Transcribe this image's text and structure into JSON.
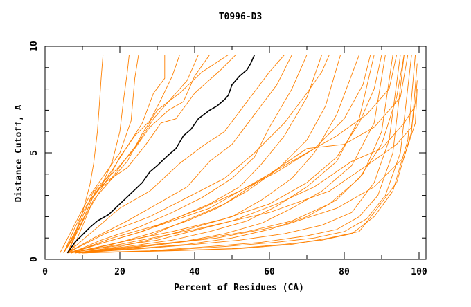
{
  "chart_data": {
    "type": "line",
    "title": "T0996-D3",
    "xlabel": "Percent of Residues (CA)",
    "ylabel": "Distance Cutoff, A",
    "xlim": [
      0,
      100
    ],
    "ylim": [
      0,
      10
    ],
    "xticks": [
      "0",
      "20",
      "40",
      "60",
      "80",
      "100"
    ],
    "yticks": [
      "0",
      "5",
      "10"
    ],
    "grid": false,
    "highlight_color": "#000000",
    "series_color": "#ff8000",
    "highlight": {
      "name": "highlight",
      "points": [
        [
          6,
          0.3
        ],
        [
          8,
          0.8
        ],
        [
          10,
          1.15
        ],
        [
          12,
          1.5
        ],
        [
          14,
          1.8
        ],
        [
          17,
          2.1
        ],
        [
          20,
          2.6
        ],
        [
          23,
          3.1
        ],
        [
          26,
          3.6
        ],
        [
          28,
          4.1
        ],
        [
          30,
          4.4
        ],
        [
          33,
          4.9
        ],
        [
          35,
          5.2
        ],
        [
          37,
          5.8
        ],
        [
          39,
          6.1
        ],
        [
          41,
          6.6
        ],
        [
          44,
          7.0
        ],
        [
          46,
          7.2
        ],
        [
          48,
          7.5
        ],
        [
          49,
          7.7
        ],
        [
          50,
          8.2
        ],
        [
          52,
          8.6
        ],
        [
          54,
          8.9
        ],
        [
          55,
          9.2
        ],
        [
          56,
          9.6
        ]
      ]
    },
    "series": [
      [
        [
          5,
          0.3
        ],
        [
          8,
          1.2
        ],
        [
          10,
          2.2
        ],
        [
          12,
          3.5
        ],
        [
          13,
          4.5
        ],
        [
          14,
          6
        ],
        [
          14.5,
          7.2
        ],
        [
          15,
          8.5
        ],
        [
          15.5,
          9.6
        ]
      ],
      [
        [
          5,
          0.3
        ],
        [
          8,
          1.5
        ],
        [
          11,
          2.5
        ],
        [
          15,
          3.4
        ],
        [
          18,
          4.6
        ],
        [
          20,
          6
        ],
        [
          21,
          7.5
        ],
        [
          22,
          8.8
        ],
        [
          22.5,
          9.6
        ]
      ],
      [
        [
          4,
          0.3
        ],
        [
          9,
          2
        ],
        [
          12,
          3
        ],
        [
          16,
          4
        ],
        [
          20,
          5
        ],
        [
          23,
          6.5
        ],
        [
          24,
          8.5
        ],
        [
          25,
          9.6
        ]
      ],
      [
        [
          6,
          0.3
        ],
        [
          10,
          1.8
        ],
        [
          13,
          3
        ],
        [
          18,
          4.2
        ],
        [
          22,
          5.3
        ],
        [
          26,
          6.4
        ],
        [
          29,
          7.8
        ],
        [
          32,
          8.5
        ],
        [
          32,
          9.6
        ]
      ],
      [
        [
          5,
          0.3
        ],
        [
          9,
          1.6
        ],
        [
          12,
          2.8
        ],
        [
          17,
          3.8
        ],
        [
          20,
          4.8
        ],
        [
          24,
          5.8
        ],
        [
          28,
          6.5
        ],
        [
          31,
          7.5
        ],
        [
          34,
          8.6
        ],
        [
          36,
          9.6
        ]
      ],
      [
        [
          6,
          0.3
        ],
        [
          10,
          2
        ],
        [
          13,
          3.2
        ],
        [
          17,
          3.6
        ],
        [
          21,
          4.6
        ],
        [
          25,
          5.5
        ],
        [
          29,
          6.6
        ],
        [
          33,
          7.4
        ],
        [
          38,
          8.4
        ],
        [
          41,
          9.6
        ]
      ],
      [
        [
          6,
          0.3
        ],
        [
          11,
          2.2
        ],
        [
          14,
          3.4
        ],
        [
          19,
          4.2
        ],
        [
          24,
          5.2
        ],
        [
          28,
          6.2
        ],
        [
          33,
          7
        ],
        [
          37,
          7.4
        ],
        [
          40,
          8.6
        ],
        [
          44,
          9.6
        ]
      ],
      [
        [
          5,
          0.3
        ],
        [
          9,
          1.4
        ],
        [
          13,
          2.8
        ],
        [
          18,
          3.8
        ],
        [
          22,
          4.6
        ],
        [
          26,
          5.9
        ],
        [
          30,
          7
        ],
        [
          36,
          7.8
        ],
        [
          42,
          8.8
        ],
        [
          49,
          9.6
        ]
      ],
      [
        [
          7,
          0.3
        ],
        [
          12,
          2.4
        ],
        [
          16,
          3.6
        ],
        [
          22,
          4.3
        ],
        [
          27,
          5.4
        ],
        [
          31,
          6.4
        ],
        [
          35,
          6.6
        ],
        [
          40,
          7.8
        ],
        [
          47,
          8.9
        ],
        [
          51,
          9.6
        ]
      ],
      [
        [
          6,
          0.3
        ],
        [
          12,
          1.2
        ],
        [
          20,
          2.4
        ],
        [
          28,
          3.2
        ],
        [
          36,
          4.5
        ],
        [
          42,
          5.3
        ],
        [
          48,
          6
        ],
        [
          54,
          7.4
        ],
        [
          60,
          8.8
        ],
        [
          64,
          9.6
        ]
      ],
      [
        [
          6,
          0.3
        ],
        [
          13,
          1
        ],
        [
          22,
          1.8
        ],
        [
          30,
          2.6
        ],
        [
          38,
          3.4
        ],
        [
          44,
          4.6
        ],
        [
          50,
          5.4
        ],
        [
          56,
          6.8
        ],
        [
          62,
          8.2
        ],
        [
          66,
          9.6
        ]
      ],
      [
        [
          7,
          0.3
        ],
        [
          15,
          0.9
        ],
        [
          25,
          1.5
        ],
        [
          34,
          2.2
        ],
        [
          42,
          2.9
        ],
        [
          50,
          3.8
        ],
        [
          56,
          4.8
        ],
        [
          60,
          6.2
        ],
        [
          66,
          8
        ],
        [
          70,
          9.6
        ]
      ],
      [
        [
          7,
          0.3
        ],
        [
          16,
          0.8
        ],
        [
          26,
          1.3
        ],
        [
          36,
          2
        ],
        [
          44,
          2.6
        ],
        [
          52,
          3.4
        ],
        [
          58,
          4.5
        ],
        [
          64,
          5.8
        ],
        [
          70,
          7.6
        ],
        [
          74,
          9.6
        ]
      ],
      [
        [
          7,
          0.3
        ],
        [
          18,
          0.7
        ],
        [
          28,
          1.2
        ],
        [
          38,
          1.8
        ],
        [
          46,
          2.4
        ],
        [
          54,
          3.2
        ],
        [
          62,
          4.2
        ],
        [
          70,
          5.6
        ],
        [
          75,
          7.2
        ],
        [
          79,
          9.6
        ]
      ],
      [
        [
          8,
          0.3
        ],
        [
          20,
          0.6
        ],
        [
          30,
          1
        ],
        [
          40,
          1.5
        ],
        [
          50,
          2
        ],
        [
          58,
          2.8
        ],
        [
          66,
          3.8
        ],
        [
          72,
          5
        ],
        [
          78,
          6.8
        ],
        [
          84,
          9.6
        ]
      ],
      [
        [
          8,
          0.3
        ],
        [
          22,
          0.6
        ],
        [
          34,
          0.9
        ],
        [
          44,
          1.3
        ],
        [
          54,
          1.8
        ],
        [
          62,
          2.5
        ],
        [
          70,
          3.4
        ],
        [
          78,
          4.6
        ],
        [
          84,
          6.6
        ],
        [
          88,
          9.6
        ]
      ],
      [
        [
          8,
          0.3
        ],
        [
          22,
          0.5
        ],
        [
          36,
          0.8
        ],
        [
          48,
          1.2
        ],
        [
          58,
          1.7
        ],
        [
          66,
          2.4
        ],
        [
          74,
          3.2
        ],
        [
          82,
          4.4
        ],
        [
          88,
          6.4
        ],
        [
          91,
          9.6
        ]
      ],
      [
        [
          9,
          0.3
        ],
        [
          24,
          0.5
        ],
        [
          38,
          0.7
        ],
        [
          50,
          1
        ],
        [
          60,
          1.4
        ],
        [
          70,
          2
        ],
        [
          78,
          2.8
        ],
        [
          85,
          4
        ],
        [
          90,
          6
        ],
        [
          93,
          9.6
        ]
      ],
      [
        [
          9,
          0.3
        ],
        [
          26,
          0.5
        ],
        [
          40,
          0.7
        ],
        [
          52,
          0.9
        ],
        [
          64,
          1.2
        ],
        [
          74,
          1.6
        ],
        [
          82,
          2.2
        ],
        [
          88,
          3.6
        ],
        [
          92,
          5.6
        ],
        [
          95,
          9.6
        ]
      ],
      [
        [
          9,
          0.3
        ],
        [
          28,
          0.4
        ],
        [
          44,
          0.6
        ],
        [
          58,
          0.8
        ],
        [
          70,
          1.1
        ],
        [
          78,
          1.4
        ],
        [
          84,
          2
        ],
        [
          89,
          3
        ],
        [
          93,
          5
        ],
        [
          96,
          9.6
        ]
      ],
      [
        [
          10,
          0.3
        ],
        [
          30,
          0.4
        ],
        [
          48,
          0.6
        ],
        [
          62,
          0.8
        ],
        [
          72,
          1
        ],
        [
          80,
          1.3
        ],
        [
          86,
          1.9
        ],
        [
          91,
          3
        ],
        [
          95,
          5
        ],
        [
          98,
          9.6
        ]
      ],
      [
        [
          10,
          0.3
        ],
        [
          32,
          0.4
        ],
        [
          50,
          0.5
        ],
        [
          64,
          0.7
        ],
        [
          74,
          0.9
        ],
        [
          82,
          1.2
        ],
        [
          88,
          2
        ],
        [
          93,
          3.2
        ],
        [
          97,
          5.6
        ],
        [
          99,
          9.6
        ]
      ],
      [
        [
          10,
          0.3
        ],
        [
          34,
          0.4
        ],
        [
          52,
          0.5
        ],
        [
          66,
          0.7
        ],
        [
          76,
          1
        ],
        [
          84,
          1.3
        ],
        [
          88,
          2.2
        ],
        [
          94,
          3.6
        ],
        [
          98,
          6
        ],
        [
          99.5,
          9.2
        ]
      ],
      [
        [
          8,
          0.3
        ],
        [
          24,
          0.6
        ],
        [
          40,
          0.9
        ],
        [
          54,
          1.3
        ],
        [
          66,
          1.8
        ],
        [
          76,
          2.6
        ],
        [
          84,
          3.8
        ],
        [
          90,
          5.4
        ],
        [
          94,
          7.6
        ],
        [
          96,
          9.6
        ]
      ],
      [
        [
          7,
          0.3
        ],
        [
          20,
          0.8
        ],
        [
          34,
          1.3
        ],
        [
          48,
          1.9
        ],
        [
          60,
          2.6
        ],
        [
          70,
          3.6
        ],
        [
          78,
          4.8
        ],
        [
          84,
          6.4
        ],
        [
          88,
          8
        ],
        [
          90,
          9.6
        ]
      ],
      [
        [
          7,
          0.3
        ],
        [
          18,
          1
        ],
        [
          30,
          1.6
        ],
        [
          42,
          2.4
        ],
        [
          52,
          3.2
        ],
        [
          62,
          4.1
        ],
        [
          72,
          5.2
        ],
        [
          80,
          6.6
        ],
        [
          85,
          8.2
        ],
        [
          87,
          9.6
        ]
      ],
      [
        [
          6,
          0.3
        ],
        [
          16,
          1.2
        ],
        [
          28,
          2
        ],
        [
          38,
          2.9
        ],
        [
          48,
          3.8
        ],
        [
          56,
          5
        ],
        [
          64,
          6.4
        ],
        [
          70,
          7.8
        ],
        [
          74,
          8.8
        ],
        [
          76,
          9.6
        ]
      ],
      [
        [
          7,
          0.3
        ],
        [
          20,
          0.7
        ],
        [
          40,
          1.4
        ],
        [
          60,
          2.2
        ],
        [
          76,
          3.2
        ],
        [
          86,
          4.4
        ],
        [
          94,
          5.4
        ],
        [
          98,
          6.2
        ],
        [
          99,
          7.4
        ],
        [
          99.5,
          8.4
        ]
      ],
      [
        [
          8,
          0.3
        ],
        [
          26,
          0.6
        ],
        [
          46,
          1
        ],
        [
          64,
          1.6
        ],
        [
          78,
          2.4
        ],
        [
          88,
          3.4
        ],
        [
          96,
          4.8
        ],
        [
          99,
          6.4
        ],
        [
          99.5,
          8
        ]
      ],
      [
        [
          6,
          0.3
        ],
        [
          30,
          0.9
        ],
        [
          50,
          1.8
        ],
        [
          62,
          2.6
        ],
        [
          72,
          3.4
        ],
        [
          82,
          4.6
        ],
        [
          90,
          5.2
        ],
        [
          96,
          6.4
        ],
        [
          99,
          7.2
        ]
      ],
      [
        [
          6,
          0.3
        ],
        [
          24,
          1.2
        ],
        [
          44,
          2.4
        ],
        [
          58,
          3.8
        ],
        [
          66,
          4.6
        ],
        [
          78,
          5.8
        ],
        [
          86,
          6.8
        ],
        [
          92,
          8
        ],
        [
          94,
          9.6
        ]
      ],
      [
        [
          7,
          0.3
        ],
        [
          28,
          1.1
        ],
        [
          48,
          2.6
        ],
        [
          60,
          4
        ],
        [
          70,
          5.2
        ],
        [
          80,
          5.4
        ],
        [
          88,
          6.2
        ],
        [
          95,
          7.6
        ],
        [
          97,
          9.6
        ]
      ]
    ]
  }
}
